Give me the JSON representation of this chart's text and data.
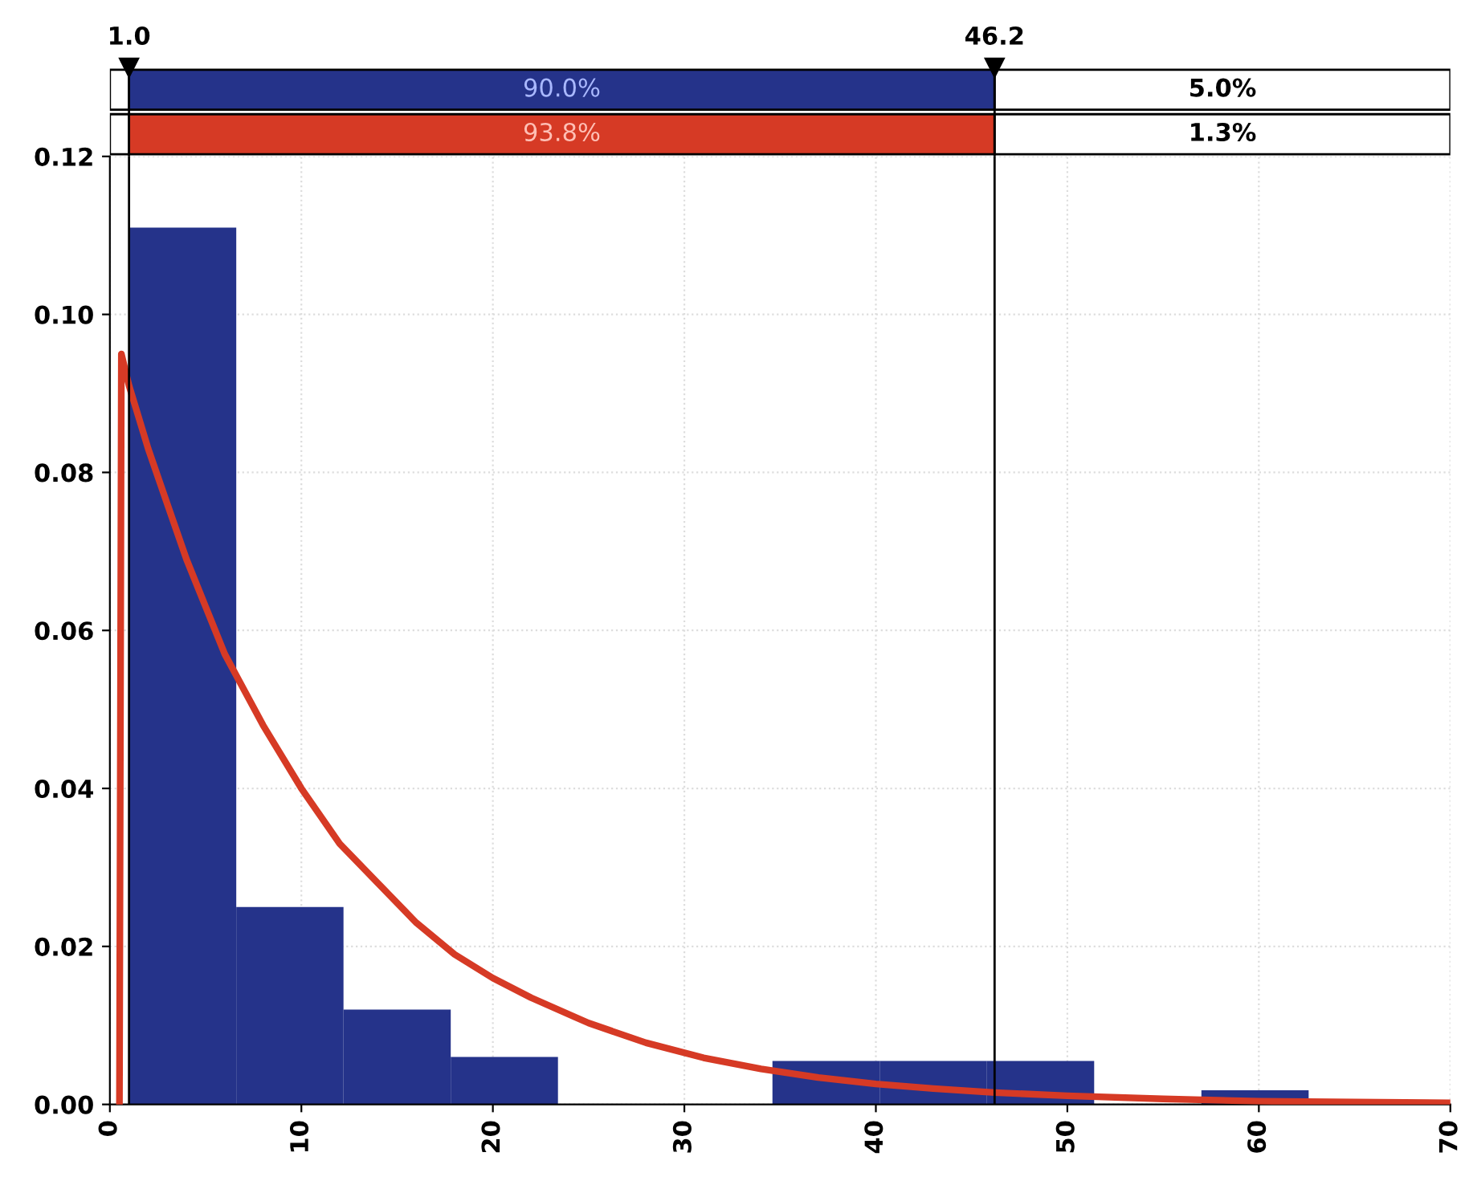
{
  "chart_data": {
    "type": "histogram",
    "bins": [
      1.0,
      6.6,
      12.2,
      17.8,
      23.4,
      29.0,
      34.6,
      40.2,
      45.8,
      51.4,
      57.0,
      62.6
    ],
    "series": [
      {
        "type": "histogram",
        "color": "#25338a",
        "values": [
          0.111,
          0.025,
          0.012,
          0.006,
          0,
          0,
          0.0055,
          0.0055,
          0.0055,
          0,
          0.0018
        ]
      },
      {
        "type": "line",
        "color": "#d63a25",
        "x": [
          0.5,
          0.6,
          1,
          2,
          3,
          4,
          5,
          6,
          8,
          10,
          12,
          14,
          16,
          18,
          20,
          22,
          25,
          28,
          31,
          34,
          37,
          40,
          43,
          46.2,
          50,
          55,
          60,
          65,
          70
        ],
        "values": [
          0,
          0.095,
          0.091,
          0.083,
          0.076,
          0.069,
          0.063,
          0.057,
          0.048,
          0.04,
          0.033,
          0.028,
          0.023,
          0.019,
          0.016,
          0.0135,
          0.0103,
          0.0078,
          0.0059,
          0.0045,
          0.0034,
          0.0026,
          0.002,
          0.0015,
          0.0011,
          0.0007,
          0.0004,
          0.0003,
          0.0002
        ]
      }
    ],
    "xlim": [
      0,
      70
    ],
    "xticks": [
      0,
      10,
      20,
      30,
      40,
      50,
      60,
      70
    ],
    "ylim": [
      0,
      0.12
    ],
    "yticks": [
      {
        "value": 0,
        "label": "0.00"
      },
      {
        "value": 0.02,
        "label": "0.02"
      },
      {
        "value": 0.04,
        "label": "0.04"
      },
      {
        "value": 0.06,
        "label": "0.06"
      },
      {
        "value": 0.08,
        "label": "0.08"
      },
      {
        "value": 0.1,
        "label": "0.10"
      },
      {
        "value": 0.12,
        "label": "0.12"
      }
    ],
    "ref_lines": [
      {
        "axis": "x",
        "value": 1.0,
        "label": "1.0"
      },
      {
        "axis": "x",
        "value": 46.2,
        "label": "46.2"
      }
    ],
    "annotations": [
      "90.0%",
      "93.8%",
      "5.0%",
      "1.3%"
    ],
    "grid": true
  }
}
